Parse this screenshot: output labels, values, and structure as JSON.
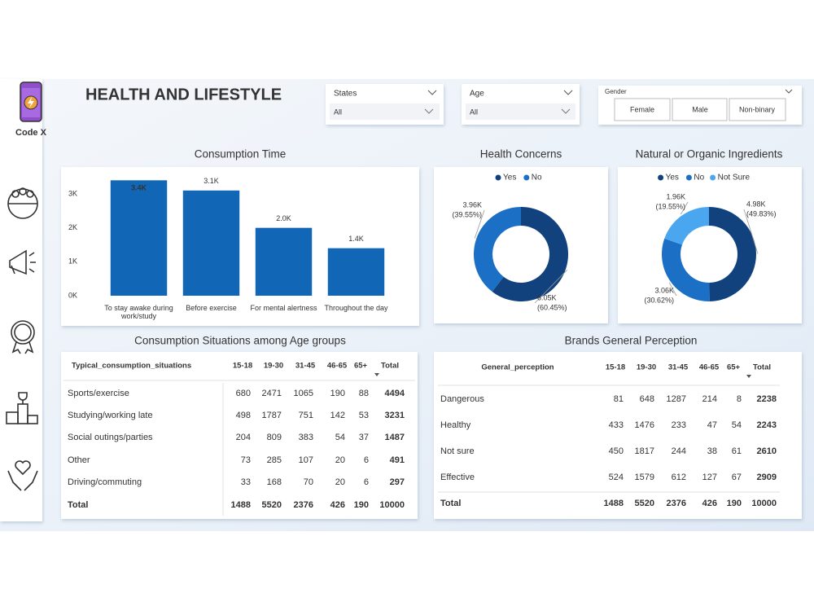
{
  "header": {
    "brand": "Code X",
    "title": "HEALTH AND LIFESTYLE"
  },
  "filters": [
    {
      "label": "States",
      "value": "All"
    },
    {
      "label": "Age",
      "value": "All"
    },
    {
      "label": "Gender",
      "options": [
        "Female",
        "Male",
        "Non-binary"
      ]
    }
  ],
  "chart_data": [
    {
      "type": "bar",
      "title": "Consumption Time",
      "categories": [
        "To stay awake during work/study",
        "Before exercise",
        "For mental alertness",
        "Throughout the day"
      ],
      "values": [
        3400,
        3100,
        2000,
        1400
      ],
      "value_labels": [
        "3.4K",
        "3.1K",
        "2.0K",
        "1.4K"
      ],
      "color": "#1166b5",
      "ylim": [
        0,
        3600
      ],
      "yticks": [
        {
          "value": 0,
          "label": "0K"
        },
        {
          "value": 1000,
          "label": "1K"
        },
        {
          "value": 2000,
          "label": "2K"
        },
        {
          "value": 3000,
          "label": "3K"
        }
      ],
      "grid": false
    },
    {
      "type": "donut",
      "title": "Health Concerns",
      "categories": [
        "Yes",
        "No"
      ],
      "values": [
        6050,
        3960
      ],
      "value_labels": [
        "6.05K",
        "3.96K"
      ],
      "percents": [
        60.45,
        39.55
      ],
      "percent_labels": [
        "(60.45%)",
        "(39.55%)"
      ],
      "colors": [
        "#12427e",
        "#1b6fc4"
      ]
    },
    {
      "type": "donut",
      "title": "Natural or Organic Ingredients",
      "categories": [
        "Yes",
        "No",
        "Not Sure"
      ],
      "values": [
        4980,
        3060,
        1960
      ],
      "value_labels": [
        "4.98K",
        "3.06K",
        "1.96K"
      ],
      "percents": [
        49.83,
        30.62,
        19.55
      ],
      "percent_labels": [
        "(49.83%)",
        "(30.62%)",
        "(19.55%)"
      ],
      "colors": [
        "#12427e",
        "#1b6fc4",
        "#4ba6f0"
      ]
    }
  ],
  "tables": [
    {
      "title": "Consumption Situations among Age groups",
      "columns": [
        "Typical_consumption_situations",
        "15-18",
        "19-30",
        "31-45",
        "46-65",
        "65+",
        "Total"
      ],
      "rows": [
        [
          "Sports/exercise",
          680,
          2471,
          1065,
          190,
          88,
          4494
        ],
        [
          "Studying/working late",
          498,
          1787,
          751,
          142,
          53,
          3231
        ],
        [
          "Social outings/parties",
          204,
          809,
          383,
          54,
          37,
          1487
        ],
        [
          "Other",
          73,
          285,
          107,
          20,
          6,
          491
        ],
        [
          "Driving/commuting",
          33,
          168,
          70,
          20,
          6,
          297
        ],
        [
          "Total",
          1488,
          5520,
          2376,
          426,
          190,
          10000
        ]
      ]
    },
    {
      "title": "Brands General Perception",
      "columns": [
        "General_perception",
        "15-18",
        "19-30",
        "31-45",
        "46-65",
        "65+",
        "Total"
      ],
      "rows": [
        [
          "Dangerous",
          81,
          648,
          1287,
          214,
          8,
          2238
        ],
        [
          "Healthy",
          433,
          1476,
          233,
          47,
          54,
          2243
        ],
        [
          "Not sure",
          450,
          1817,
          244,
          38,
          61,
          2610
        ],
        [
          "Effective",
          524,
          1579,
          612,
          127,
          67,
          2909
        ],
        [
          "Total",
          1488,
          5520,
          2376,
          426,
          190,
          10000
        ]
      ]
    }
  ]
}
